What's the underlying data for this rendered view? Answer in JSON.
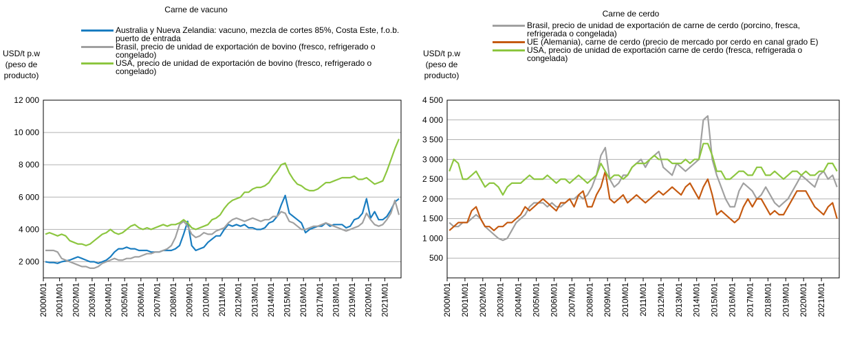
{
  "chart_data": [
    {
      "type": "line",
      "title": "Carne de vacuno",
      "y_label": [
        "USD/t p.w",
        "(peso de",
        "producto)"
      ],
      "categories": [
        "2000M01",
        null,
        null,
        null,
        "2001M01",
        null,
        null,
        null,
        "2002M01",
        null,
        null,
        null,
        "2003M01",
        null,
        null,
        null,
        "2004M01",
        null,
        null,
        null,
        "2005M01",
        null,
        null,
        null,
        "2006M01",
        null,
        null,
        null,
        "2007M01",
        null,
        null,
        null,
        "2008M01",
        null,
        null,
        null,
        "2009M01",
        null,
        null,
        null,
        "2010M01",
        null,
        null,
        null,
        "2011M01",
        null,
        null,
        null,
        "2012M01",
        null,
        null,
        null,
        "2013M01",
        null,
        null,
        null,
        "2014M01",
        null,
        null,
        null,
        "2015M01",
        null,
        null,
        null,
        "2016M01",
        null,
        null,
        null,
        "2017M01",
        null,
        null,
        null,
        "2018M01",
        null,
        null,
        null,
        "2019M01",
        null,
        null,
        null,
        "2020M01",
        null,
        null,
        null,
        "2021M01",
        null,
        null,
        null
      ],
      "ylim": [
        1000,
        12000
      ],
      "yticks": [
        {
          "value": 2000,
          "label": "2 000"
        },
        {
          "value": 4000,
          "label": "4 000"
        },
        {
          "value": 6000,
          "label": "6 000"
        },
        {
          "value": 8000,
          "label": "8 000"
        },
        {
          "value": 10000,
          "label": "10 000"
        },
        {
          "value": 12000,
          "label": "12 000"
        }
      ],
      "grid": true,
      "series": [
        {
          "name": "Australia y Nueva Zelandia: vacuno, mezcla de cortes 85%, Costa Este, f.o.b. puerto de entrada",
          "color": "#1a7dc0",
          "values": [
            2000,
            1950,
            1950,
            1900,
            2000,
            2050,
            2100,
            2200,
            2300,
            2200,
            2100,
            2000,
            2000,
            1900,
            2000,
            2100,
            2300,
            2600,
            2800,
            2800,
            2900,
            2800,
            2800,
            2700,
            2700,
            2700,
            2600,
            2600,
            2600,
            2700,
            2700,
            2700,
            2800,
            3000,
            3700,
            4500,
            3000,
            2700,
            2800,
            2900,
            3200,
            3400,
            3600,
            3600,
            4000,
            4300,
            4200,
            4300,
            4200,
            4300,
            4100,
            4100,
            4000,
            4000,
            4100,
            4400,
            4500,
            4800,
            5500,
            6100,
            5000,
            4800,
            4600,
            4400,
            3800,
            4000,
            4100,
            4200,
            4200,
            4400,
            4200,
            4300,
            4300,
            4300,
            4100,
            4200,
            4600,
            4700,
            5000,
            5900,
            4700,
            5100,
            4600,
            4600,
            4800,
            5200,
            5700,
            5900
          ]
        },
        {
          "name": "Brasil, precio de unidad de exportación de bovino (fresco, refrigerado o congelado)",
          "color": "#a0a0a0",
          "values": [
            2700,
            2700,
            2700,
            2600,
            2200,
            2100,
            2000,
            1900,
            1800,
            1700,
            1700,
            1600,
            1600,
            1700,
            1900,
            2000,
            2100,
            2200,
            2100,
            2100,
            2200,
            2200,
            2300,
            2300,
            2400,
            2500,
            2500,
            2600,
            2600,
            2700,
            2800,
            3000,
            3500,
            4300,
            4500,
            4200,
            3700,
            3500,
            3600,
            3800,
            3700,
            3700,
            3900,
            4000,
            4100,
            4400,
            4600,
            4700,
            4600,
            4500,
            4600,
            4700,
            4600,
            4500,
            4600,
            4600,
            4800,
            4800,
            5100,
            5000,
            4500,
            4400,
            4200,
            4000,
            4000,
            4100,
            4200,
            4200,
            4300,
            4400,
            4300,
            4200,
            4100,
            4000,
            3900,
            4000,
            4100,
            4200,
            4400,
            5000,
            4600,
            4300,
            4200,
            4300,
            4600,
            5000,
            5800,
            4900
          ]
        },
        {
          "name": "USA, precio de unidad de exportación de bovino (fresco, refrigerado o congelado)",
          "color": "#8cc63f",
          "values": [
            3700,
            3800,
            3700,
            3600,
            3700,
            3600,
            3300,
            3200,
            3100,
            3100,
            3000,
            3100,
            3300,
            3500,
            3700,
            3800,
            4000,
            3800,
            3700,
            3800,
            4000,
            4200,
            4300,
            4100,
            4000,
            4100,
            4000,
            4100,
            4200,
            4300,
            4200,
            4300,
            4300,
            4400,
            4600,
            4400,
            4100,
            4000,
            4100,
            4200,
            4300,
            4600,
            4700,
            4900,
            5300,
            5600,
            5800,
            5900,
            6000,
            6300,
            6300,
            6500,
            6600,
            6600,
            6700,
            6900,
            7300,
            7600,
            8000,
            8100,
            7500,
            7100,
            6800,
            6700,
            6500,
            6400,
            6400,
            6500,
            6700,
            6900,
            6900,
            7000,
            7100,
            7200,
            7200,
            7200,
            7300,
            7100,
            7100,
            7200,
            7000,
            6800,
            6900,
            7000,
            7600,
            8300,
            9000,
            9600
          ]
        }
      ]
    },
    {
      "type": "line",
      "title": "Carne de cerdo",
      "y_label": [
        "USD/t p.w",
        "(peso de",
        "producto)"
      ],
      "categories": [
        "2000M01",
        null,
        null,
        null,
        "2001M01",
        null,
        null,
        null,
        "2002M01",
        null,
        null,
        null,
        "2003M01",
        null,
        null,
        null,
        "2004M01",
        null,
        null,
        null,
        "2005M01",
        null,
        null,
        null,
        "2006M01",
        null,
        null,
        null,
        "2007M01",
        null,
        null,
        null,
        "2008M01",
        null,
        null,
        null,
        "2009M01",
        null,
        null,
        null,
        "2010M01",
        null,
        null,
        null,
        "2011M01",
        null,
        null,
        null,
        "2012M01",
        null,
        null,
        null,
        "2013M01",
        null,
        null,
        null,
        "2014M01",
        null,
        null,
        null,
        "2015M01",
        null,
        null,
        null,
        "2016M01",
        null,
        null,
        null,
        "2017M01",
        null,
        null,
        null,
        "2018M01",
        null,
        null,
        null,
        "2019M01",
        null,
        null,
        null,
        "2020M01",
        null,
        null,
        null,
        "2021M01",
        null,
        null,
        null
      ],
      "ylim": [
        0,
        4500
      ],
      "yticks": [
        500,
        {
          "value": 1000,
          "label": "1 000"
        },
        {
          "value": 1500,
          "label": "1 500"
        },
        {
          "value": 2000,
          "label": "2 000"
        },
        {
          "value": 2500,
          "label": "2 500"
        },
        {
          "value": 3000,
          "label": "3 000"
        },
        {
          "value": 3500,
          "label": "3 500"
        },
        {
          "value": 4000,
          "label": "4 000"
        },
        {
          "value": 4500,
          "label": "4 500"
        }
      ],
      "grid": true,
      "series": [
        {
          "name": "Brasil, precio de unidad de exportación de carne de cerdo (porcino, fresca, refrigerada o congelada)",
          "color": "#a0a0a0",
          "values": [
            1400,
            1300,
            1300,
            1400,
            1400,
            1500,
            1600,
            1500,
            1300,
            1200,
            1100,
            1000,
            950,
            1000,
            1200,
            1400,
            1500,
            1600,
            1800,
            1900,
            1900,
            1900,
            1800,
            1900,
            1800,
            1800,
            1900,
            2000,
            2000,
            2100,
            2000,
            2100,
            2300,
            2600,
            3100,
            3300,
            2500,
            2300,
            2400,
            2600,
            2600,
            2800,
            2900,
            3000,
            2800,
            3000,
            3100,
            3200,
            2800,
            2700,
            2600,
            2900,
            2800,
            2700,
            2800,
            2900,
            3000,
            4000,
            4100,
            3000,
            2600,
            2300,
            2000,
            1800,
            1800,
            2200,
            2400,
            2300,
            2200,
            2000,
            2100,
            2300,
            2100,
            1900,
            1800,
            1900,
            2000,
            2200,
            2400,
            2600,
            2500,
            2400,
            2300,
            2600,
            2700,
            2500,
            2600,
            2300
          ]
        },
        {
          "name": "UE (Alemania), carne de cerdo (precio de mercado por cerdo en canal grado E)",
          "color": "#c55a11",
          "values": [
            1200,
            1300,
            1400,
            1400,
            1400,
            1700,
            1800,
            1500,
            1300,
            1300,
            1200,
            1300,
            1300,
            1400,
            1400,
            1500,
            1600,
            1800,
            1700,
            1800,
            1900,
            2000,
            1900,
            1800,
            1700,
            1900,
            1900,
            2000,
            1800,
            2100,
            2200,
            1800,
            1800,
            2100,
            2300,
            2700,
            2000,
            1900,
            2000,
            2100,
            1900,
            2000,
            2100,
            2000,
            1900,
            2000,
            2100,
            2200,
            2100,
            2200,
            2300,
            2200,
            2100,
            2300,
            2400,
            2200,
            2000,
            2300,
            2500,
            2100,
            1600,
            1700,
            1600,
            1500,
            1400,
            1500,
            1800,
            2000,
            1800,
            2000,
            2000,
            1800,
            1600,
            1700,
            1600,
            1600,
            1800,
            2000,
            2200,
            2200,
            2200,
            2000,
            1800,
            1700,
            1600,
            1800,
            1900,
            1500
          ]
        },
        {
          "name": "USA, precio de unidad de exportación carne de cerdo (fresca, refrigerada o congelada)",
          "color": "#8cc63f",
          "values": [
            2700,
            3000,
            2900,
            2500,
            2500,
            2600,
            2700,
            2500,
            2300,
            2400,
            2400,
            2300,
            2100,
            2300,
            2400,
            2400,
            2400,
            2500,
            2600,
            2500,
            2500,
            2500,
            2600,
            2500,
            2400,
            2500,
            2500,
            2400,
            2500,
            2600,
            2500,
            2400,
            2500,
            2600,
            2900,
            2700,
            2500,
            2600,
            2600,
            2500,
            2600,
            2800,
            2900,
            2900,
            2900,
            3000,
            3100,
            3000,
            3000,
            3000,
            2900,
            2900,
            2900,
            3000,
            2900,
            3000,
            3000,
            3400,
            3400,
            3100,
            2700,
            2700,
            2500,
            2500,
            2600,
            2700,
            2700,
            2600,
            2600,
            2800,
            2800,
            2600,
            2600,
            2700,
            2600,
            2500,
            2600,
            2700,
            2700,
            2600,
            2700,
            2600,
            2600,
            2700,
            2700,
            2900,
            2900,
            2700
          ]
        }
      ]
    }
  ]
}
